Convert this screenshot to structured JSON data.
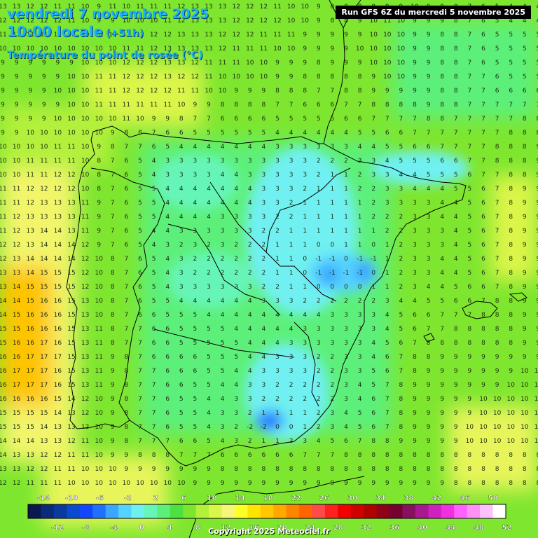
{
  "header": {
    "date": "vendredi 7 novembre 2025",
    "time": "10:00 locale",
    "offset": "(+51h)",
    "parameter": "Température du point de rosée (°C)",
    "run": "Run GFS 6Z du mercredi 5 novembre 2025"
  },
  "legend": {
    "top_labels": [
      "-14",
      "-10",
      "-6",
      "-2",
      "2",
      "6",
      "10",
      "14",
      "18",
      "22",
      "26",
      "30",
      "34",
      "38",
      "42",
      "46",
      "50"
    ],
    "bottom_labels": [
      "-12",
      "-8",
      "-4",
      "0",
      "4",
      "8",
      "12",
      "16",
      "20",
      "24",
      "28",
      "32",
      "36",
      "40",
      "44",
      "48",
      "52"
    ],
    "colors": [
      "#0a1850",
      "#0b2a78",
      "#0a3aa0",
      "#0a4ad0",
      "#1446ff",
      "#2070ff",
      "#3aa6ff",
      "#55d2ff",
      "#6ff0f0",
      "#66f5b8",
      "#5cf07a",
      "#4ce040",
      "#7ce62e",
      "#b2f03a",
      "#dcf54a",
      "#f5f57a",
      "#ffff28",
      "#ffe400",
      "#ffc800",
      "#ffa800",
      "#ff8400",
      "#ff6400",
      "#ff4a4a",
      "#ff2020",
      "#f00000",
      "#d00000",
      "#b00000",
      "#900018",
      "#780030",
      "#881060",
      "#a81890",
      "#d020c0",
      "#f030e0",
      "#ff60ff",
      "#ff90f8",
      "#ffc0ff",
      "#ffffff"
    ]
  },
  "grid": {
    "rows": [
      "13 13 12 12 11 11 10 9 11 10 11 11 11 12 13 13 13 12 12 12 11 10 10 9 8 8 8 8 9 9 10 9 9 8 7 6 5 4 4 4",
      "12 12 12 12 12 11 10 9 9 10 10 10 11 12 13 13 13 12 12 12 12 10 10 9 8 8 9 10 11 10 9 9 9 8 7 6 5 4 4 4",
      "11 11 11 11 11 10 10 10 10 11 12 12 12 13 13 13 12 12 12 11 11 11 9 9 9 9 9 10 10 10 9 9 8 8 7 6 5 5 5 5",
      "10 10 10 10 10 10 10 10 10 11 11 12 13 13 13 13 12 11 11 11 10 10 9 9 9 9 10 10 10 10 9 9 8 8 7 6 5 5 5 5",
      "9 9 9 9 9 9 10 10 10 12 12 12 13 13 12 11 11 11 10 10 9 9 9 8 9 9 9 10 10 10 9 9 8 8 7 6 5 5 5 5",
      "9 9 9 9 9 10 10 11 11 12 12 12 13 12 12 11 10 10 10 10 9 9 8 8 8 8 8 9 10 10 9 9 8 8 7 7 6 5 5 5",
      "9 9 9 9 10 10 10 11 11 12 12 12 12 11 11 10 10 9 9 9 8 8 8 7 7 8 8 9 9 9 9 9 8 8 7 7 6 6 6 6",
      "9 9 9 9 9 10 10 11 11 11 11 11 11 10 9 9 8 8 8 8 7 7 6 6 6 7 7 8 8 8 8 9 8 8 7 7 7 7 7 7",
      "9 9 9 9 10 10 10 10 10 11 10 9 9 8 7 7 6 6 6 6 5 5 5 5 5 6 6 7 7 7 7 8 8 7 7 7 7 7 8 8",
      "9 9 10 10 10 10 10 10 9 8 8 7 6 6 5 5 5 5 5 5 4 4 4 4 4 4 5 5 6 6 7 7 7 7 7 7 7 8 8 8",
      "10 10 10 10 11 11 10 9 8 7 7 6 5 4 4 4 4 4 4 4 3 3 3 3 3 3 4 4 5 5 6 6 7 7 7 7 8 8 8 9",
      "10 10 11 11 11 11 10 8 7 6 5 4 3 3 3 3 3 3 3 3 3 3 3 2 2 2 3 3 4 5 5 5 6 6 7 7 8 8 8 9",
      "10 10 11 11 12 12 10 8 7 6 5 4 3 3 3 3 4 4 3 3 3 3 3 2 1 1 2 3 3 4 4 5 5 5 6 7 7 8 8 9",
      "11 11 12 12 12 12 10 8 7 6 5 5 4 4 4 4 4 4 4 3 3 3 2 1 1 1 2 2 3 3 4 4 4 5 5 6 7 8 9 9",
      "11 11 12 13 13 13 11 9 7 6 5 5 4 4 4 4 4 4 4 3 3 2 1 1 1 1 1 2 3 3 3 3 4 4 5 6 7 8 9 9",
      "11 12 13 13 13 13 11 9 7 6 5 5 4 4 4 4 3 3 3 3 2 2 1 1 1 1 1 2 2 2 3 3 4 4 5 6 7 8 9 9",
      "11 12 13 14 14 13 11 9 7 6 5 4 4 3 3 3 3 3 3 2 2 1 1 1 1 1 1 1 2 2 3 3 3 4 5 6 7 8 9 9",
      "12 12 13 14 14 14 12 9 7 6 5 4 3 2 3 2 3 2 2 2 1 1 1 0 0 1 1 0 1 2 3 3 3 4 5 6 7 8 9 9",
      "12 13 14 14 14 14 12 10 8 7 6 5 4 3 2 2 2 2 2 2 1 1 0 -1 -1 0 -1 -1 1 2 3 3 4 4 5 6 7 8 9 9",
      "13 13 14 15 15 15 12 10 8 7 6 5 4 3 2 2 2 2 2 2 1 1 0 -1 -1 -1 -1 0 1 2 3 3 4 4 5 6 7 8 9 9",
      "13 14 15 15 15 15 12 10 8 7 6 5 4 3 3 3 3 3 3 2 2 1 1 0 0 0 0 1 1 2 3 4 4 5 6 6 7 8 9 9",
      "14 14 15 16 16 15 13 10 8 7 6 5 5 4 4 4 4 4 4 3 3 3 2 2 2 2 2 2 3 4 4 5 5 6 6 7 8 8 9 9",
      "14 15 16 16 16 15 13 10 8 7 6 6 5 5 5 4 4 4 4 4 4 4 4 4 3 3 3 3 4 5 6 6 7 7 7 8 8 8 9 9",
      "15 15 16 16 16 15 13 11 8 7 7 6 6 5 5 5 5 4 4 4 4 4 3 3 3 3 3 3 4 5 6 7 7 8 8 8 8 8 9 9",
      "15 16 16 17 16 15 13 11 8 7 7 6 6 5 5 5 5 5 4 4 4 3 3 3 3 3 3 4 5 6 7 8 8 8 8 8 8 8 9 9",
      "16 16 17 17 17 15 13 11 9 8 7 6 6 6 6 5 5 5 4 4 3 3 3 2 2 3 3 4 6 7 8 8 9 9 9 9 9 9 9 9",
      "16 17 17 17 16 15 13 11 9 8 7 7 6 6 6 5 5 4 4 3 3 3 3 2 2 3 3 5 6 7 8 9 9 9 9 9 9 9 10 10",
      "16 17 17 17 16 15 13 11 9 8 7 7 6 6 5 5 4 4 3 3 2 2 2 2 2 3 4 5 7 8 9 9 9 9 9 9 9 10 10 10",
      "16 16 16 16 15 14 12 10 9 8 7 7 6 5 5 4 4 3 3 2 2 2 2 2 2 3 4 6 7 8 9 9 9 9 9 10 10 10 10 10",
      "15 15 15 15 14 13 12 10 9 8 7 7 6 5 5 4 3 3 2 1 1 1 1 2 3 4 5 6 7 8 9 9 9 9 9 10 10 10 10 10",
      "15 15 15 14 13 13 12 10 9 8 7 7 6 5 5 4 3 2 -2 -2 0 0 1 2 3 4 5 6 7 8 9 9 9 9 10 10 10 10 10 10",
      "14 14 14 13 13 12 11 10 9 8 7 7 7 6 6 5 4 3 2 1 1 2 3 4 5 6 7 8 8 9 9 9 9 9 10 10 10 10 10 10",
      "14 13 13 12 12 11 11 10 9 9 8 8 8 7 7 7 6 6 6 6 6 6 7 7 7 8 8 8 8 8 8 8 8 8 8 8 8 8 8 8",
      "13 13 12 12 11 11 10 10 10 9 9 9 9 9 9 9 8 8 8 8 8 8 8 8 8 8 8 8 8 8 8 8 8 8 8 8 8 8 8 8",
      "12 12 11 11 11 10 10 10 10 10 10 10 10 10 9 9 9 9 9 9 9 9 9 9 9 9 9 9 9 9 9 9 9 8 8 8 8 8 8 8",
      "12 11 11 11 10 10 10 10 10 10 10 10 10 10 10 10 10 10 10 10 10 10 10 10 10 10 10 10 10 10 9 9 9 9 9 9 8 8 8 8",
      "11 11 11 11 10 10 10 10 10 10 10 10 10 10 10 10 10 10 10 10 10 10 10 10 10 10 10 10 10 10 10 10 9 9 9 9 9 9 9 9",
      "11 11 11 10 10 10 10 10 10 10 10 10 10 10 10 10 10 10 10 10 10 10 10 10 10 10 10 10 10 10 10 10 10 10 10 10 10 10 10 10"
    ]
  },
  "copyright": "Copyright 2025 Meteociel.fr"
}
